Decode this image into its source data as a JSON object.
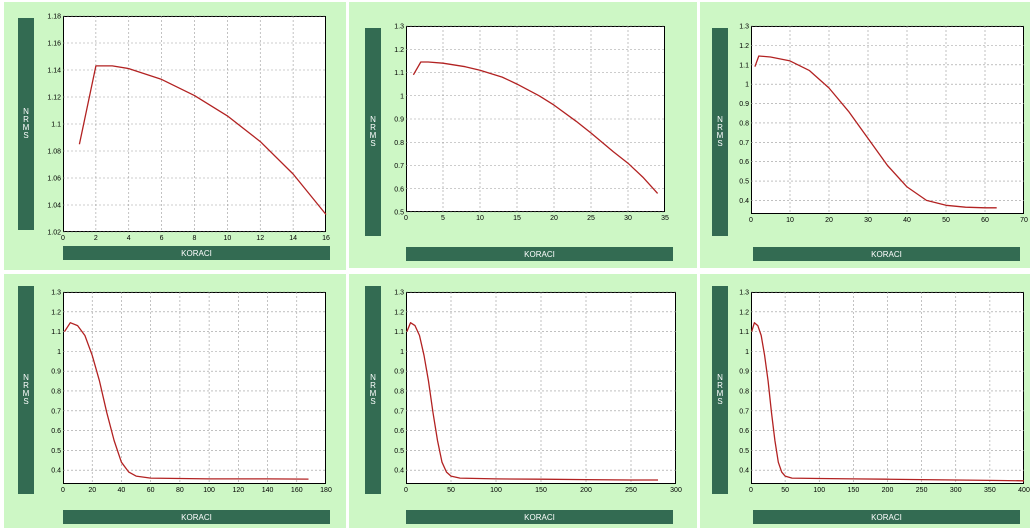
{
  "charts": [
    {
      "ylabel": "NRMS",
      "xlabel": "KORACI",
      "xticks": [
        "0",
        "2",
        "4",
        "6",
        "8",
        "10",
        "12",
        "14",
        "16"
      ],
      "yticks": [
        "1.02",
        "1.04",
        "1.06",
        "1.08",
        "1.1",
        "1.12",
        "1.14",
        "1.16",
        "1.18"
      ]
    },
    {
      "ylabel": "NRMS",
      "xlabel": "KORACI",
      "xticks": [
        "0",
        "5",
        "10",
        "15",
        "20",
        "25",
        "30",
        "35"
      ],
      "yticks": [
        "0.5",
        "0.6",
        "0.7",
        "0.8",
        "0.9",
        "1",
        "1.1",
        "1.2",
        "1.3"
      ]
    },
    {
      "ylabel": "NRMS",
      "xlabel": "KORACI",
      "xticks": [
        "0",
        "10",
        "20",
        "30",
        "40",
        "50",
        "60",
        "70"
      ],
      "yticks": [
        "0.4",
        "0.5",
        "0.6",
        "0.7",
        "0.8",
        "0.9",
        "1",
        "1.1",
        "1.2",
        "1.3"
      ]
    },
    {
      "ylabel": "NRMS",
      "xlabel": "KORACI",
      "xticks": [
        "0",
        "20",
        "40",
        "60",
        "80",
        "100",
        "120",
        "140",
        "160",
        "180"
      ],
      "yticks": [
        "0.4",
        "0.5",
        "0.6",
        "0.7",
        "0.8",
        "0.9",
        "1",
        "1.1",
        "1.2",
        "1.3"
      ]
    },
    {
      "ylabel": "NRMS",
      "xlabel": "KORACI",
      "xticks": [
        "0",
        "50",
        "100",
        "150",
        "200",
        "250",
        "300"
      ],
      "yticks": [
        "0.4",
        "0.5",
        "0.6",
        "0.7",
        "0.8",
        "0.9",
        "1",
        "1.1",
        "1.2",
        "1.3"
      ]
    },
    {
      "ylabel": "NRMS",
      "xlabel": "KORACI",
      "xticks": [
        "0",
        "50",
        "100",
        "150",
        "200",
        "250",
        "300",
        "350",
        "400"
      ],
      "yticks": [
        "0.4",
        "0.5",
        "0.6",
        "0.7",
        "0.8",
        "0.9",
        "1",
        "1.1",
        "1.2",
        "1.3"
      ]
    }
  ],
  "chart_data": [
    {
      "type": "line",
      "title": "",
      "xlabel": "KORACI",
      "ylabel": "NRMS",
      "xlim": [
        0,
        16
      ],
      "ylim": [
        1.02,
        1.18
      ],
      "grid": true,
      "color": "#b22222",
      "x": [
        1,
        2,
        3,
        4,
        6,
        8,
        10,
        12,
        14,
        16
      ],
      "y": [
        1.085,
        1.143,
        1.143,
        1.141,
        1.133,
        1.121,
        1.106,
        1.087,
        1.063,
        1.033
      ]
    },
    {
      "type": "line",
      "title": "",
      "xlabel": "KORACI",
      "ylabel": "NRMS",
      "xlim": [
        0,
        35
      ],
      "ylim": [
        0.5,
        1.3
      ],
      "grid": true,
      "color": "#b22222",
      "x": [
        1,
        2,
        3,
        5,
        8,
        10,
        13,
        15,
        18,
        20,
        23,
        25,
        28,
        30,
        32,
        34
      ],
      "y": [
        1.09,
        1.145,
        1.145,
        1.14,
        1.125,
        1.11,
        1.08,
        1.05,
        1.0,
        0.96,
        0.89,
        0.84,
        0.76,
        0.71,
        0.65,
        0.58
      ]
    },
    {
      "type": "line",
      "title": "",
      "xlabel": "KORACI",
      "ylabel": "NRMS",
      "xlim": [
        0,
        70
      ],
      "ylim": [
        0.33,
        1.3
      ],
      "grid": true,
      "color": "#b22222",
      "x": [
        1,
        2,
        5,
        10,
        15,
        20,
        25,
        30,
        35,
        40,
        45,
        50,
        55,
        60,
        63
      ],
      "y": [
        1.09,
        1.145,
        1.14,
        1.12,
        1.07,
        0.98,
        0.86,
        0.72,
        0.58,
        0.47,
        0.4,
        0.375,
        0.365,
        0.362,
        0.362
      ]
    },
    {
      "type": "line",
      "title": "",
      "xlabel": "KORACI",
      "ylabel": "NRMS",
      "xlim": [
        0,
        180
      ],
      "ylim": [
        0.33,
        1.3
      ],
      "grid": true,
      "color": "#b22222",
      "x": [
        1,
        5,
        10,
        15,
        20,
        25,
        30,
        35,
        40,
        45,
        50,
        60,
        80,
        100,
        120,
        140,
        168
      ],
      "y": [
        1.1,
        1.145,
        1.13,
        1.08,
        0.98,
        0.85,
        0.69,
        0.55,
        0.44,
        0.39,
        0.37,
        0.36,
        0.358,
        0.356,
        0.356,
        0.356,
        0.355
      ]
    },
    {
      "type": "line",
      "title": "",
      "xlabel": "KORACI",
      "ylabel": "NRMS",
      "xlim": [
        0,
        300
      ],
      "ylim": [
        0.33,
        1.3
      ],
      "grid": true,
      "color": "#b22222",
      "x": [
        1,
        5,
        10,
        15,
        20,
        25,
        30,
        35,
        40,
        45,
        50,
        60,
        100,
        150,
        200,
        250,
        280
      ],
      "y": [
        1.1,
        1.145,
        1.13,
        1.08,
        0.98,
        0.85,
        0.69,
        0.55,
        0.44,
        0.39,
        0.37,
        0.36,
        0.356,
        0.354,
        0.352,
        0.35,
        0.35
      ]
    },
    {
      "type": "line",
      "title": "",
      "xlabel": "KORACI",
      "ylabel": "NRMS",
      "xlim": [
        0,
        400
      ],
      "ylim": [
        0.33,
        1.3
      ],
      "grid": true,
      "color": "#b22222",
      "x": [
        1,
        5,
        10,
        15,
        20,
        25,
        30,
        35,
        40,
        45,
        50,
        60,
        100,
        150,
        200,
        250,
        300,
        350,
        400
      ],
      "y": [
        1.1,
        1.145,
        1.13,
        1.08,
        0.98,
        0.85,
        0.69,
        0.55,
        0.44,
        0.39,
        0.37,
        0.36,
        0.358,
        0.356,
        0.354,
        0.352,
        0.35,
        0.348,
        0.346
      ]
    }
  ]
}
